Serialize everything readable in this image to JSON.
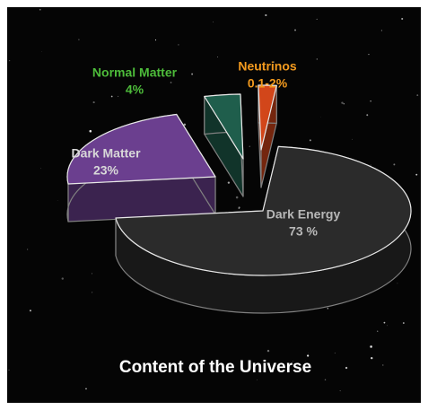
{
  "chart_data": {
    "type": "pie3d",
    "title": "Content of the Universe",
    "categories": [
      "Dark Energy",
      "Dark Matter",
      "Normal Matter",
      "Neutrinos"
    ],
    "values": [
      73,
      23,
      4,
      2
    ],
    "value_labels": [
      "73 %",
      "23%",
      "4%",
      "0.1-2%"
    ],
    "colors": [
      "#2b2b2b",
      "#6b3f8f",
      "#1f5e4c",
      "#d2461a"
    ],
    "label_colors": [
      "#b8b8b8",
      "#d8d8d8",
      "#4dbb3a",
      "#f39a1e"
    ]
  }
}
